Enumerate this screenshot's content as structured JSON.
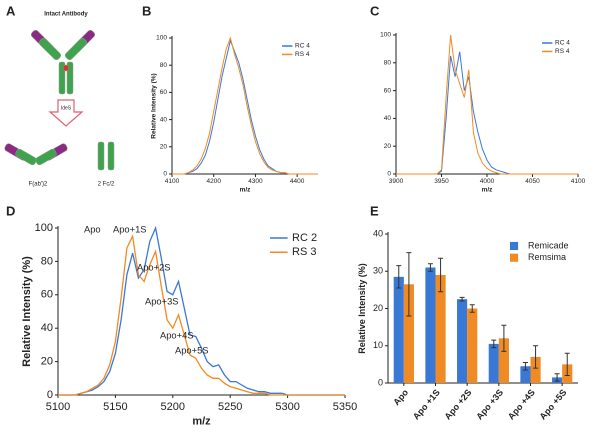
{
  "diagram": {
    "label": "A",
    "top_text": "Intact Antibody",
    "arrow_text": "IdeS",
    "left_text": "F(ab')2",
    "right_text": "2 Fc/2"
  },
  "chart_data": [
    {
      "type": "line",
      "label": "B",
      "xlabel": "m/z",
      "ylabel": "Relative Intensity (%)",
      "xlim": [
        4100,
        4450
      ],
      "xticks": [
        4100,
        4200,
        4300,
        4400
      ],
      "ylim": [
        0,
        100
      ],
      "yticks": [
        0,
        20,
        40,
        60,
        80,
        100
      ],
      "legend": "upper right",
      "x": [
        4100,
        4110,
        4120,
        4130,
        4140,
        4150,
        4160,
        4170,
        4180,
        4190,
        4200,
        4210,
        4220,
        4230,
        4240,
        4250,
        4260,
        4270,
        4280,
        4290,
        4300,
        4310,
        4320,
        4330,
        4340,
        4350,
        4360,
        4370,
        4380,
        4390,
        4400,
        4410,
        4420,
        4430,
        4440,
        4450
      ],
      "series": [
        {
          "name": "RC 4",
          "color": "#3a78d6",
          "values": [
            0,
            0,
            0,
            0,
            1,
            2,
            4,
            8,
            14,
            24,
            38,
            55,
            72,
            85,
            98,
            90,
            82,
            70,
            55,
            40,
            28,
            18,
            11,
            6,
            4,
            2,
            1,
            1,
            0,
            0,
            0,
            0,
            0,
            0,
            0,
            0
          ]
        },
        {
          "name": "RS 4",
          "color": "#f08a24",
          "values": [
            0,
            0,
            0,
            0,
            1,
            3,
            6,
            11,
            19,
            30,
            46,
            62,
            78,
            92,
            100,
            88,
            78,
            66,
            50,
            36,
            24,
            15,
            9,
            5,
            3,
            2,
            1,
            1,
            0,
            0,
            0,
            0,
            0,
            0,
            0,
            0
          ]
        }
      ]
    },
    {
      "type": "line",
      "label": "C",
      "xlabel": "m/z",
      "ylabel": "",
      "xlim": [
        3900,
        4100
      ],
      "xticks": [
        3900,
        3950,
        4000,
        4050,
        4100
      ],
      "ylim": [
        0,
        100
      ],
      "yticks": [
        0,
        20,
        40,
        60,
        80,
        100
      ],
      "legend": "upper right",
      "x": [
        3900,
        3905,
        3910,
        3915,
        3920,
        3925,
        3930,
        3935,
        3940,
        3945,
        3950,
        3955,
        3960,
        3965,
        3970,
        3975,
        3980,
        3985,
        3990,
        3995,
        4000,
        4005,
        4010,
        4015,
        4020,
        4025,
        4030,
        4035,
        4040,
        4045,
        4050,
        4055,
        4060,
        4065,
        4070,
        4075,
        4080,
        4085,
        4090,
        4095,
        4100
      ],
      "series": [
        {
          "name": "RC 4",
          "color": "#3a78d6",
          "values": [
            0,
            0,
            0,
            0,
            0,
            0,
            0,
            0,
            0,
            0,
            2,
            40,
            85,
            70,
            88,
            60,
            70,
            45,
            30,
            18,
            10,
            5,
            3,
            2,
            1,
            0,
            0,
            0,
            0,
            0,
            0,
            0,
            0,
            0,
            0,
            0,
            0,
            0,
            0,
            0,
            0
          ]
        },
        {
          "name": "RS 4",
          "color": "#f08a24",
          "values": [
            0,
            0,
            0,
            0,
            0,
            0,
            0,
            0,
            0,
            0,
            3,
            55,
            100,
            75,
            65,
            55,
            75,
            30,
            15,
            8,
            4,
            2,
            1,
            0,
            0,
            0,
            0,
            0,
            0,
            0,
            0,
            0,
            0,
            0,
            0,
            0,
            0,
            0,
            0,
            0,
            0
          ]
        }
      ]
    },
    {
      "type": "line",
      "label": "D",
      "xlabel": "m/z",
      "ylabel": "Relative Intensity (%)",
      "xlim": [
        5100,
        5350
      ],
      "xticks": [
        5100,
        5150,
        5200,
        5250,
        5300,
        5350
      ],
      "ylim": [
        0,
        100
      ],
      "yticks": [
        0,
        20,
        40,
        60,
        80,
        100
      ],
      "legend": "upper right",
      "annotations": [
        "Apo",
        "Apo+1S",
        "Apo+2S",
        "Apo+3S",
        "Apo+4S",
        "Apo+5S"
      ],
      "x": [
        5100,
        5105,
        5110,
        5115,
        5120,
        5125,
        5130,
        5135,
        5140,
        5145,
        5150,
        5155,
        5160,
        5165,
        5170,
        5175,
        5180,
        5185,
        5190,
        5195,
        5200,
        5205,
        5210,
        5215,
        5220,
        5225,
        5230,
        5235,
        5240,
        5245,
        5250,
        5255,
        5260,
        5265,
        5270,
        5275,
        5280,
        5285,
        5290,
        5295,
        5300,
        5305,
        5310,
        5315,
        5320,
        5325,
        5330,
        5335,
        5340,
        5345,
        5350
      ],
      "series": [
        {
          "name": "RC 2",
          "color": "#3a78d6",
          "values": [
            0,
            0,
            0,
            0,
            1,
            2,
            3,
            5,
            8,
            14,
            25,
            45,
            72,
            85,
            70,
            75,
            92,
            100,
            82,
            62,
            60,
            68,
            52,
            36,
            35,
            28,
            20,
            17,
            18,
            12,
            8,
            8,
            6,
            4,
            3,
            2,
            2,
            1,
            1,
            1,
            0,
            0,
            0,
            0,
            0,
            0,
            0,
            0,
            0,
            0,
            0
          ]
        },
        {
          "name": "RS 3",
          "color": "#f08a24",
          "values": [
            0,
            0,
            0,
            0,
            1,
            2,
            4,
            6,
            10,
            18,
            32,
            58,
            88,
            95,
            72,
            68,
            78,
            86,
            65,
            45,
            40,
            48,
            36,
            24,
            22,
            16,
            12,
            10,
            10,
            7,
            5,
            4,
            3,
            2,
            1,
            1,
            1,
            0,
            0,
            0,
            0,
            0,
            0,
            0,
            0,
            0,
            0,
            0,
            0,
            0,
            0
          ]
        }
      ]
    },
    {
      "type": "bar",
      "label": "E",
      "ylabel": "Relative Intensity (%)",
      "ylim": [
        0,
        40
      ],
      "yticks": [
        0,
        10,
        20,
        30,
        40
      ],
      "legend": "upper right",
      "categories": [
        "Apo",
        "Apo +1S",
        "Apo +2S",
        "Apo +3S",
        "Apo +4S",
        "Apo +5S"
      ],
      "series": [
        {
          "name": "Remicade",
          "color": "#3a78d6",
          "values": [
            28.5,
            31,
            22.5,
            10.5,
            4.5,
            1.5
          ],
          "errors": [
            3,
            1,
            0.5,
            1,
            1,
            1
          ]
        },
        {
          "name": "Remsima",
          "color": "#f08a24",
          "values": [
            26.5,
            29,
            20,
            12,
            7,
            5
          ],
          "errors": [
            8.5,
            4.5,
            1,
            3.5,
            3,
            3
          ]
        }
      ]
    }
  ]
}
